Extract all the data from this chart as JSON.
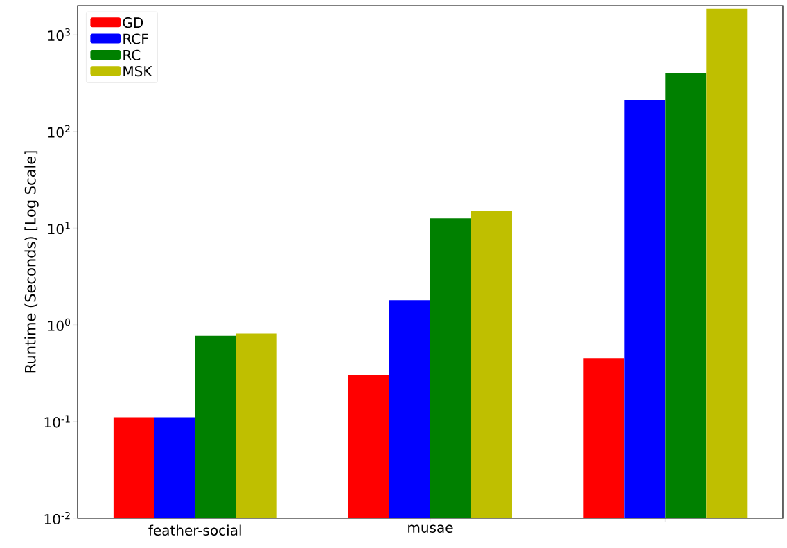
{
  "chart_data": {
    "type": "bar",
    "ylabel": "Runtime (Seconds) [Log Scale]",
    "categories": [
      "feather-social",
      "musae",
      null
    ],
    "series": [
      {
        "name": "GD",
        "color": "#ff0000",
        "values": [
          0.11,
          0.3,
          0.45
        ]
      },
      {
        "name": "RCF",
        "color": "#0000ff",
        "values": [
          0.11,
          1.8,
          210
        ]
      },
      {
        "name": "RC",
        "color": "#008000",
        "values": [
          0.77,
          12.6,
          400
        ]
      },
      {
        "name": "MSK",
        "color": "#bfbf00",
        "values": [
          0.81,
          15,
          1850
        ]
      }
    ],
    "log": "y",
    "ylim": [
      0.01,
      2000
    ],
    "yticks": [
      {
        "value": 0.01,
        "label": "10$^{-2}$"
      },
      {
        "value": 0.1,
        "label": "10$^{-1}$"
      },
      {
        "value": 1,
        "label": "10$^{0}$"
      },
      {
        "value": 10,
        "label": "10$^{1}$"
      },
      {
        "value": 100,
        "label": "10$^{2}$"
      },
      {
        "value": 1000,
        "label": "10$^{3}$"
      }
    ],
    "legend": "top left",
    "grid": false
  }
}
